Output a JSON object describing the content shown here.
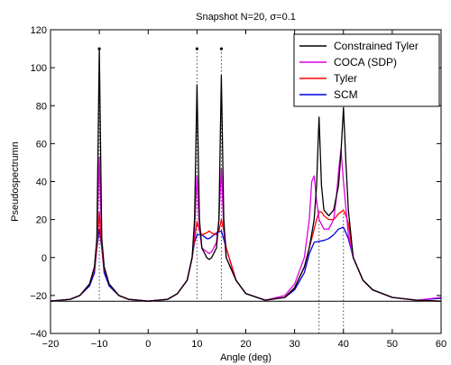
{
  "chart_data": {
    "type": "line",
    "title": "Snapshot N=20, σ=0.1",
    "xlabel": "Angle (deg)",
    "ylabel": "Pseudospectrumn",
    "xlim": [
      -20,
      60
    ],
    "ylim": [
      -40,
      120
    ],
    "xticks": [
      -20,
      -10,
      0,
      10,
      20,
      30,
      40,
      50,
      60
    ],
    "yticks": [
      -40,
      -20,
      0,
      20,
      40,
      60,
      80,
      100,
      120
    ],
    "grid": false,
    "legend_position": "top-right",
    "baseline": -23,
    "true_angles": [
      {
        "x": -10,
        "marker_y": 110
      },
      {
        "x": 10,
        "marker_y": 110
      },
      {
        "x": 15,
        "marker_y": 110
      },
      {
        "x": 35,
        "marker_y": null
      },
      {
        "x": 40,
        "marker_y": null
      }
    ],
    "series": [
      {
        "name": "Constrained Tyler",
        "color": "#000000",
        "x": [
          -20,
          -16,
          -14,
          -12,
          -11,
          -10.5,
          -10,
          -9.5,
          -9,
          -8,
          -6,
          -4,
          0,
          4,
          6,
          8,
          9,
          9.5,
          10,
          10.5,
          11,
          12,
          12.5,
          13,
          14,
          14.5,
          15,
          15.5,
          16,
          18,
          20,
          24,
          28,
          30,
          32,
          33,
          34,
          34.5,
          35,
          35.5,
          36,
          37,
          38,
          39,
          39.5,
          40,
          40.5,
          41,
          42,
          44,
          46,
          50,
          55,
          60
        ],
        "values": [
          -23,
          -22,
          -20,
          -14,
          -5,
          10,
          110,
          10,
          -5,
          -14,
          -20,
          -22,
          -23,
          -22,
          -19,
          -12,
          0,
          20,
          91,
          20,
          5,
          0,
          -1,
          0,
          5,
          20,
          96,
          20,
          0,
          -12,
          -19,
          -22.5,
          -21,
          -16,
          -5,
          5,
          20,
          38,
          74,
          38,
          25,
          22,
          25,
          38,
          55,
          79,
          50,
          25,
          0,
          -12,
          -17,
          -21,
          -22.5,
          -23
        ]
      },
      {
        "name": "COCA (SDP)",
        "color": "#e000e0",
        "x": [
          -20,
          -16,
          -14,
          -12,
          -11,
          -10.5,
          -10,
          -9.5,
          -9,
          -8,
          -6,
          -4,
          0,
          4,
          6,
          8,
          9,
          9.5,
          10,
          10.5,
          11,
          12,
          12.5,
          13,
          14,
          14.5,
          15,
          15.5,
          16,
          18,
          20,
          24,
          28,
          30,
          32,
          33,
          33.5,
          34,
          34.5,
          35,
          36,
          37,
          38,
          38.5,
          39,
          39.5,
          40,
          41,
          42,
          44,
          46,
          50,
          55,
          60
        ],
        "values": [
          -23,
          -22,
          -20,
          -14,
          -5,
          8,
          53,
          8,
          -5,
          -14,
          -20,
          -22,
          -23,
          -22,
          -19,
          -12,
          0,
          15,
          43,
          15,
          5,
          3,
          2,
          3,
          8,
          20,
          47,
          15,
          0,
          -12,
          -19,
          -22.5,
          -20,
          -14,
          0,
          20,
          40,
          43,
          30,
          20,
          15,
          15,
          20,
          30,
          45,
          57,
          40,
          12,
          0,
          -12,
          -17,
          -21,
          -22.5,
          -21
        ]
      },
      {
        "name": "Tyler",
        "color": "#ff0000",
        "x": [
          -20,
          -16,
          -14,
          -12,
          -11,
          -10.5,
          -10,
          -9.5,
          -9,
          -8,
          -6,
          -4,
          0,
          4,
          6,
          8,
          9,
          9.5,
          10,
          10.5,
          11,
          12,
          12.5,
          13,
          14,
          14.5,
          15,
          15.5,
          16,
          18,
          20,
          24,
          28,
          30,
          32,
          33,
          34,
          34.5,
          35,
          35.5,
          36,
          37,
          38,
          39,
          39.5,
          40,
          40.5,
          41,
          42,
          44,
          46,
          50,
          55,
          60
        ],
        "values": [
          -23,
          -22,
          -20,
          -14,
          -6,
          5,
          24,
          5,
          -6,
          -14,
          -20,
          -22,
          -23,
          -22,
          -19,
          -12,
          0,
          10,
          19,
          14,
          12,
          13,
          14,
          13,
          12,
          14,
          20,
          14,
          5,
          -12,
          -19,
          -22.5,
          -21,
          -16,
          -5,
          5,
          15,
          20,
          24,
          24,
          22,
          20,
          20,
          23,
          24,
          25,
          22,
          18,
          0,
          -12,
          -17,
          -21,
          -22.5,
          -23
        ]
      },
      {
        "name": "SCM",
        "color": "#0000dd",
        "x": [
          -20,
          -16,
          -14,
          -12,
          -11,
          -10.5,
          -10,
          -9.5,
          -9,
          -8,
          -6,
          -4,
          0,
          4,
          6,
          8,
          9,
          9.5,
          10,
          11,
          12,
          12.5,
          13,
          14,
          15,
          16,
          18,
          20,
          24,
          28,
          30,
          32,
          33,
          34,
          35,
          36,
          37,
          38,
          39,
          40,
          41,
          42,
          44,
          46,
          50,
          55,
          60
        ],
        "values": [
          -23,
          -22,
          -20,
          -15,
          -8,
          5,
          15,
          5,
          -8,
          -15,
          -20,
          -22,
          -23,
          -22,
          -19,
          -12,
          0,
          8,
          12,
          12,
          10,
          10,
          11,
          13,
          14,
          5,
          -12,
          -19,
          -22.5,
          -21,
          -17,
          -8,
          2,
          8,
          8.5,
          9,
          10,
          12,
          15,
          16,
          10,
          0,
          -12,
          -17,
          -21,
          -22.5,
          -21.5
        ]
      }
    ]
  }
}
